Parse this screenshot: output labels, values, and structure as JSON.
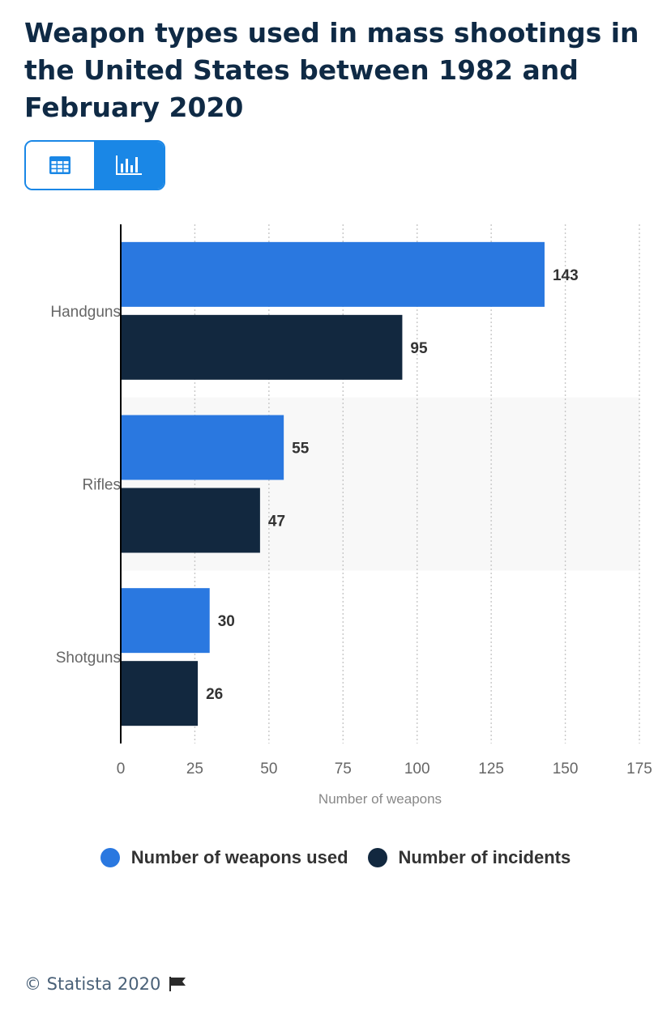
{
  "title": "Weapon types used in mass shootings in the United States between 1982 and February 2020",
  "toggle": {
    "table_icon": "table-icon",
    "chart_icon": "bar-chart-icon",
    "active": "chart",
    "accent_color": "#1a87e6"
  },
  "chart_data": {
    "type": "bar",
    "orientation": "horizontal",
    "categories": [
      "Handguns",
      "Rifles",
      "Shotguns"
    ],
    "series": [
      {
        "name": "Number of weapons used",
        "color": "#2a78e0",
        "values": [
          143,
          55,
          30
        ]
      },
      {
        "name": "Number of incidents",
        "color": "#12283f",
        "values": [
          95,
          47,
          26
        ]
      }
    ],
    "xlabel": "Number of weapons",
    "ylabel": "",
    "xlim": [
      0,
      175
    ],
    "xticks": [
      "0",
      "25",
      "50",
      "75",
      "100",
      "125",
      "150",
      "175"
    ],
    "grid": true,
    "legend_position": "bottom",
    "data_labels": true
  },
  "footer": {
    "copyright": "© Statista 2020",
    "flag_icon": "flag-icon"
  }
}
